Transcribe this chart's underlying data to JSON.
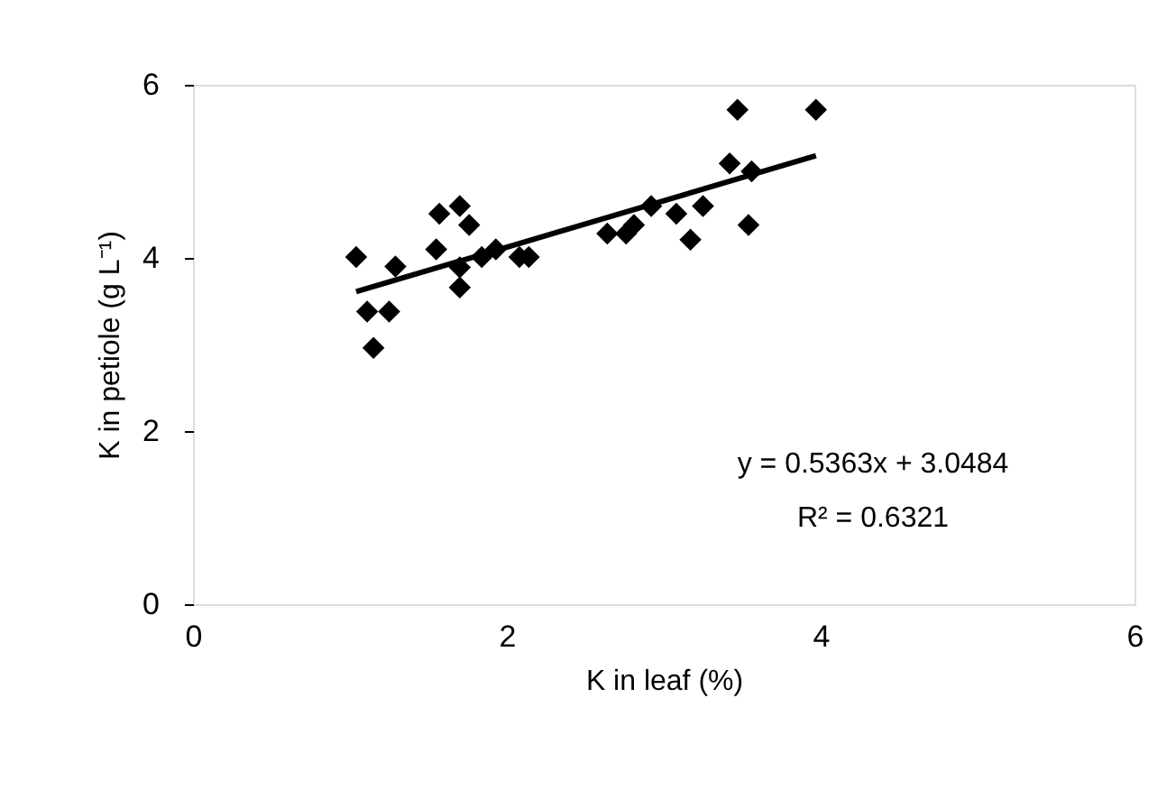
{
  "chart_data": {
    "type": "scatter",
    "xlabel": "K in leaf (%)",
    "ylabel": "K in petiole (g L⁻¹)",
    "xlim": [
      0,
      6
    ],
    "ylim": [
      0,
      6
    ],
    "xticks": [
      0,
      2,
      4,
      6
    ],
    "yticks": [
      0,
      2,
      4,
      6
    ],
    "grid": false,
    "marker": "diamond",
    "annotations": [
      "y = 0.5363x + 3.0484",
      "R² = 0.6321"
    ],
    "series": [
      {
        "color": "#000000",
        "x": [
          1.04,
          1.11,
          1.25,
          1.15,
          1.29,
          1.55,
          1.57,
          1.7,
          1.76,
          1.7,
          1.7,
          1.84,
          1.93,
          2.08,
          2.14,
          2.64,
          2.76,
          2.81,
          2.92,
          3.08,
          3.17,
          3.25,
          3.42,
          3.47,
          3.56,
          3.54,
          3.97
        ],
        "values": [
          4.01,
          3.38,
          3.38,
          2.96,
          3.9,
          4.1,
          4.51,
          4.6,
          4.38,
          3.89,
          3.66,
          4.01,
          4.1,
          4.01,
          4.01,
          4.28,
          4.28,
          4.38,
          4.6,
          4.51,
          4.21,
          4.6,
          5.09,
          5.71,
          5.0,
          4.38,
          5.71
        ]
      },
      {
        "type": "line",
        "color": "#000000",
        "x": [
          1.04,
          3.97
        ],
        "values": [
          3.61,
          5.18
        ],
        "line_style": "solid",
        "marker": "none"
      }
    ]
  }
}
